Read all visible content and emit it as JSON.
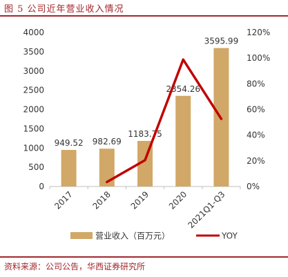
{
  "figure": {
    "title": "图 5   公司近年营业收入情况",
    "source": "资料来源：公司公告，华西证券研究所"
  },
  "colors": {
    "bar": "#d1a867",
    "line": "#c00000",
    "rule": "#a1262b",
    "text": "#333333"
  },
  "chart_data": {
    "type": "bar",
    "categories": [
      "2017",
      "2018",
      "2019",
      "2020",
      "2021Q1-Q3"
    ],
    "series": [
      {
        "name": "营业收入（百万元）",
        "type": "bar",
        "axis": "left",
        "values": [
          949.52,
          982.69,
          1183.75,
          2354.26,
          3595.99
        ],
        "labels": [
          "949.52",
          "982.69",
          "1183.75",
          "2354.26",
          "3595.99"
        ]
      },
      {
        "name": "YOY",
        "type": "line",
        "axis": "right",
        "values": [
          null,
          0.035,
          0.205,
          0.989,
          0.527
        ]
      }
    ],
    "y_left": {
      "min": 0,
      "max": 4000,
      "ticks": [
        "0",
        "500",
        "1000",
        "1500",
        "2000",
        "2500",
        "3000",
        "3500",
        "4000"
      ]
    },
    "y_right": {
      "min": 0,
      "max": 1.2,
      "ticks": [
        "0%",
        "20%",
        "40%",
        "60%",
        "80%",
        "100%",
        "120%"
      ]
    },
    "legend": {
      "position": "bottom",
      "items": [
        "营业收入（百万元）",
        "YOY"
      ]
    },
    "grid": false
  }
}
